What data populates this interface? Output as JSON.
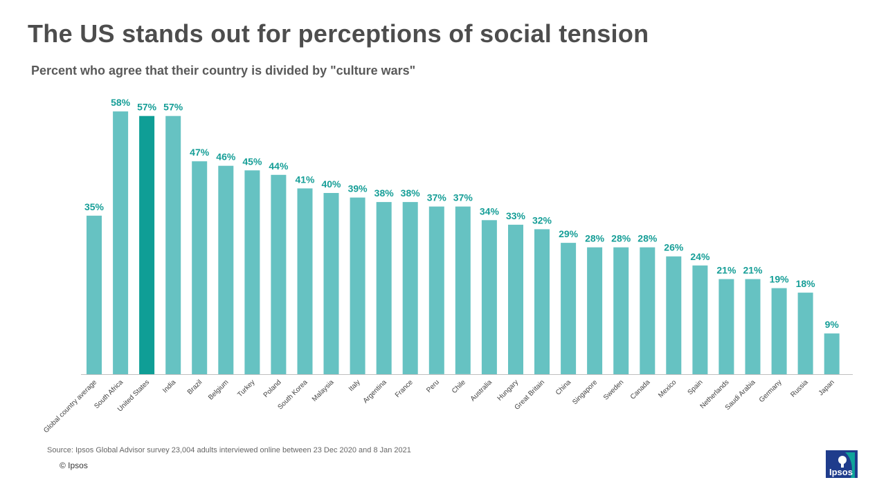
{
  "title": "The US stands out for perceptions of social tension",
  "subtitle": "Percent who agree that their country is divided by \"culture wars\"",
  "source": "Source: Ipsos Global Advisor survey 23,004 adults interviewed online between 23 Dec 2020 and 8 Jan 2021",
  "copyright": "© Ipsos",
  "logo_text": "Ipsos",
  "colors": {
    "bar": "#66c2c2",
    "highlight": "#0f9e96",
    "label": "#169e97",
    "axis": "#bfbfbf",
    "logo_bg": "#1f3c8c",
    "logo_accent": "#0fa39a"
  },
  "chart_data": {
    "type": "bar",
    "categories": [
      "Global country average",
      "South Africa",
      "United States",
      "India",
      "Brazil",
      "Belgium",
      "Turkey",
      "Poland",
      "South Korea",
      "Malaysia",
      "Italy",
      "Argentina",
      "France",
      "Peru",
      "Chile",
      "Australia",
      "Hungary",
      "Great Britain",
      "China",
      "Singapore",
      "Sweden",
      "Canada",
      "Mexico",
      "Spain",
      "Netherlands",
      "Saudi Arabia",
      "Germany",
      "Russia",
      "Japan"
    ],
    "values": [
      35,
      58,
      57,
      57,
      47,
      46,
      45,
      44,
      41,
      40,
      39,
      38,
      38,
      37,
      37,
      34,
      33,
      32,
      29,
      28,
      28,
      28,
      26,
      24,
      21,
      21,
      19,
      18,
      9
    ],
    "value_labels": [
      "35%",
      "58%",
      "57%",
      "57%",
      "47%",
      "46%",
      "45%",
      "44%",
      "41%",
      "40%",
      "39%",
      "38%",
      "38%",
      "37%",
      "37%",
      "34%",
      "33%",
      "32%",
      "29%",
      "28%",
      "28%",
      "28%",
      "26%",
      "24%",
      "21%",
      "21%",
      "19%",
      "18%",
      "9%"
    ],
    "highlighted_category": "United States",
    "ylim": [
      0,
      60
    ],
    "grid": false,
    "legend": "none"
  }
}
